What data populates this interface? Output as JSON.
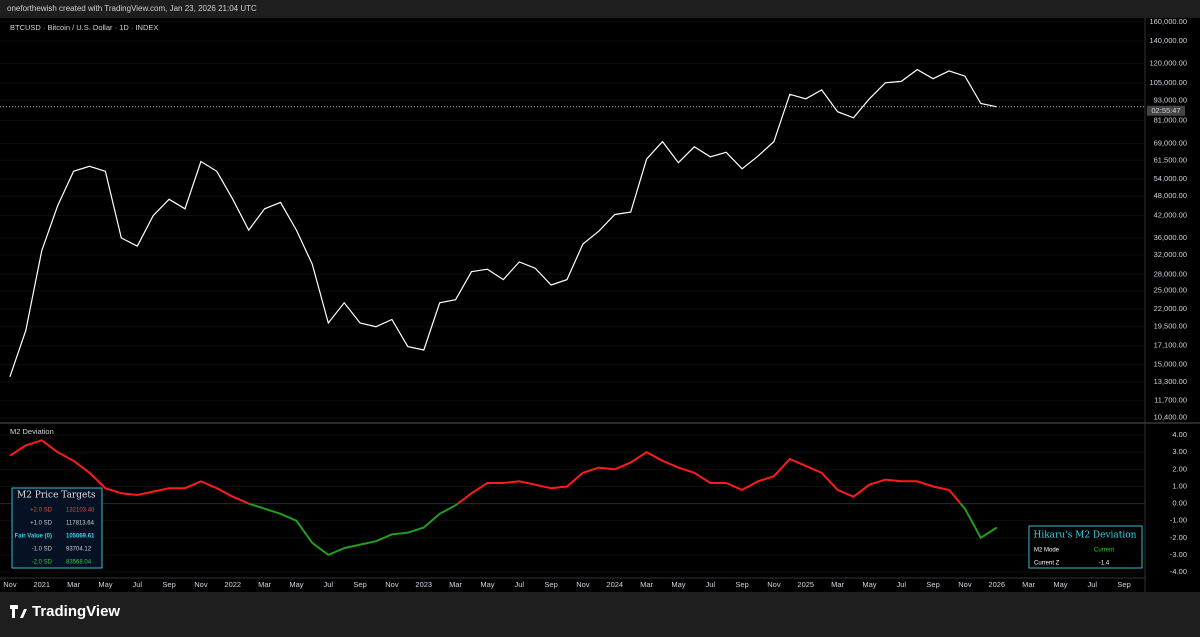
{
  "header": {
    "text": "oneforthewish created with TradingView.com, Jan 23, 2026 21:04 UTC"
  },
  "footer": {
    "logo": "TradingView"
  },
  "chart_data": [
    {
      "type": "line",
      "title": "BTCUSD · Bitcoin / U.S. Dollar · 1D · INDEX",
      "log_scale": true,
      "color": "#ffffff",
      "countdown": "02:55:47",
      "x": [
        "2020-11",
        "2020-12",
        "2021-01",
        "2021-02",
        "2021-03",
        "2021-04",
        "2021-05",
        "2021-06",
        "2021-07",
        "2021-08",
        "2021-09",
        "2021-10",
        "2021-11",
        "2021-12",
        "2022-01",
        "2022-02",
        "2022-03",
        "2022-04",
        "2022-05",
        "2022-06",
        "2022-07",
        "2022-08",
        "2022-09",
        "2022-10",
        "2022-11",
        "2022-12",
        "2023-01",
        "2023-02",
        "2023-03",
        "2023-04",
        "2023-05",
        "2023-06",
        "2023-07",
        "2023-08",
        "2023-09",
        "2023-10",
        "2023-11",
        "2023-12",
        "2024-01",
        "2024-02",
        "2024-03",
        "2024-04",
        "2024-05",
        "2024-06",
        "2024-07",
        "2024-08",
        "2024-09",
        "2024-10",
        "2024-11",
        "2024-12",
        "2025-01",
        "2025-02",
        "2025-03",
        "2025-04",
        "2025-05",
        "2025-06",
        "2025-07",
        "2025-08",
        "2025-09",
        "2025-10",
        "2025-11",
        "2025-12",
        "2026-01"
      ],
      "values": [
        13800,
        19000,
        33000,
        45000,
        57000,
        59000,
        57000,
        36000,
        34000,
        42000,
        47000,
        44000,
        61000,
        57000,
        47000,
        38000,
        44000,
        46000,
        38000,
        30000,
        20000,
        23000,
        20000,
        19500,
        20500,
        17000,
        16600,
        23000,
        23500,
        28500,
        29000,
        27000,
        30500,
        29200,
        26000,
        27000,
        34500,
        37700,
        42300,
        43000,
        62000,
        70000,
        60500,
        67500,
        63000,
        65000,
        58000,
        63300,
        70000,
        97000,
        94000,
        100000,
        86000,
        82500,
        94000,
        105000,
        106000,
        115000,
        108000,
        114000,
        110000,
        91000,
        89000
      ],
      "xlim": [
        "2020-10",
        "2026-10"
      ],
      "ylim": [
        10100,
        162000
      ],
      "yticks": [
        {
          "value": 160000,
          "label": "160,000.00"
        },
        {
          "value": 140000,
          "label": "140,000.00"
        },
        {
          "value": 120000,
          "label": "120,000.00"
        },
        {
          "value": 105000,
          "label": "105,000.00"
        },
        {
          "value": 93000,
          "label": "93,000.00"
        },
        {
          "value": 81000,
          "label": "81,000.00"
        },
        {
          "value": 69000,
          "label": "69,000.00"
        },
        {
          "value": 61500,
          "label": "61,500.00"
        },
        {
          "value": 54000,
          "label": "54,000.00"
        },
        {
          "value": 48000,
          "label": "48,000.00"
        },
        {
          "value": 42000,
          "label": "42,000.00"
        },
        {
          "value": 36000,
          "label": "36,000.00"
        },
        {
          "value": 32000,
          "label": "32,000.00"
        },
        {
          "value": 28000,
          "label": "28,000.00"
        },
        {
          "value": 25000,
          "label": "25,000.00"
        },
        {
          "value": 22000,
          "label": "22,000.00"
        },
        {
          "value": 19500,
          "label": "19,500.00"
        },
        {
          "value": 17100,
          "label": "17,100.00"
        },
        {
          "value": 15000,
          "label": "15,000.00"
        },
        {
          "value": 13300,
          "label": "13,300.00"
        },
        {
          "value": 11700,
          "label": "11,700.00"
        },
        {
          "value": 10400,
          "label": "10,400.00"
        }
      ]
    },
    {
      "type": "line",
      "title": "M2 Deviation",
      "color_above": "#ff1a1a",
      "color_below": "#1f9e1f",
      "x": [
        "2020-11",
        "2020-12",
        "2021-01",
        "2021-02",
        "2021-03",
        "2021-04",
        "2021-05",
        "2021-06",
        "2021-07",
        "2021-08",
        "2021-09",
        "2021-10",
        "2021-11",
        "2021-12",
        "2022-01",
        "2022-02",
        "2022-03",
        "2022-04",
        "2022-05",
        "2022-06",
        "2022-07",
        "2022-08",
        "2022-09",
        "2022-10",
        "2022-11",
        "2022-12",
        "2023-01",
        "2023-02",
        "2023-03",
        "2023-04",
        "2023-05",
        "2023-06",
        "2023-07",
        "2023-08",
        "2023-09",
        "2023-10",
        "2023-11",
        "2023-12",
        "2024-01",
        "2024-02",
        "2024-03",
        "2024-04",
        "2024-05",
        "2024-06",
        "2024-07",
        "2024-08",
        "2024-09",
        "2024-10",
        "2024-11",
        "2024-12",
        "2025-01",
        "2025-02",
        "2025-03",
        "2025-04",
        "2025-05",
        "2025-06",
        "2025-07",
        "2025-08",
        "2025-09",
        "2025-10",
        "2025-11",
        "2025-12",
        "2026-01"
      ],
      "values": [
        2.8,
        3.4,
        3.7,
        3.0,
        2.5,
        1.8,
        0.9,
        0.6,
        0.5,
        0.7,
        0.9,
        0.9,
        1.3,
        0.9,
        0.4,
        0.0,
        -0.3,
        -0.6,
        -1.0,
        -2.3,
        -3.0,
        -2.6,
        -2.4,
        -2.2,
        -1.8,
        -1.7,
        -1.4,
        -0.6,
        -0.1,
        0.6,
        1.2,
        1.2,
        1.3,
        1.1,
        0.9,
        1.0,
        1.8,
        2.1,
        2.0,
        2.4,
        3.0,
        2.5,
        2.1,
        1.8,
        1.2,
        1.2,
        0.8,
        1.3,
        1.6,
        2.6,
        2.2,
        1.8,
        0.8,
        0.4,
        1.1,
        1.4,
        1.3,
        1.3,
        1.0,
        0.8,
        -0.3,
        -2.0,
        -1.4
      ],
      "xlim": [
        "2020-10",
        "2026-10"
      ],
      "ylim": [
        -4.35,
        4.65
      ],
      "yticks": [
        {
          "value": 4,
          "label": "4.00"
        },
        {
          "value": 3,
          "label": "3.00"
        },
        {
          "value": 2,
          "label": "2.00"
        },
        {
          "value": 1,
          "label": "1.00"
        },
        {
          "value": 0,
          "label": "0.00"
        },
        {
          "value": -1,
          "label": "-1.00"
        },
        {
          "value": -2,
          "label": "-2.00"
        },
        {
          "value": -3,
          "label": "-3.00"
        },
        {
          "value": -4,
          "label": "-4.00"
        }
      ],
      "xticks": [
        {
          "value": "2020-11",
          "label": "Nov"
        },
        {
          "value": "2021-01",
          "label": "2021"
        },
        {
          "value": "2021-03",
          "label": "Mar"
        },
        {
          "value": "2021-05",
          "label": "May"
        },
        {
          "value": "2021-07",
          "label": "Jul"
        },
        {
          "value": "2021-09",
          "label": "Sep"
        },
        {
          "value": "2021-11",
          "label": "Nov"
        },
        {
          "value": "2022-01",
          "label": "2022"
        },
        {
          "value": "2022-03",
          "label": "Mar"
        },
        {
          "value": "2022-05",
          "label": "May"
        },
        {
          "value": "2022-07",
          "label": "Jul"
        },
        {
          "value": "2022-09",
          "label": "Sep"
        },
        {
          "value": "2022-11",
          "label": "Nov"
        },
        {
          "value": "2023-01",
          "label": "2023"
        },
        {
          "value": "2023-03",
          "label": "Mar"
        },
        {
          "value": "2023-05",
          "label": "May"
        },
        {
          "value": "2023-07",
          "label": "Jul"
        },
        {
          "value": "2023-09",
          "label": "Sep"
        },
        {
          "value": "2023-11",
          "label": "Nov"
        },
        {
          "value": "2024-01",
          "label": "2024"
        },
        {
          "value": "2024-03",
          "label": "Mar"
        },
        {
          "value": "2024-05",
          "label": "May"
        },
        {
          "value": "2024-07",
          "label": "Jul"
        },
        {
          "value": "2024-09",
          "label": "Sep"
        },
        {
          "value": "2024-11",
          "label": "Nov"
        },
        {
          "value": "2025-01",
          "label": "2025"
        },
        {
          "value": "2025-03",
          "label": "Mar"
        },
        {
          "value": "2025-05",
          "label": "May"
        },
        {
          "value": "2025-07",
          "label": "Jul"
        },
        {
          "value": "2025-09",
          "label": "Sep"
        },
        {
          "value": "2025-11",
          "label": "Nov"
        },
        {
          "value": "2026-01",
          "label": "2026"
        },
        {
          "value": "2026-03",
          "label": "Mar"
        },
        {
          "value": "2026-05",
          "label": "May"
        },
        {
          "value": "2026-07",
          "label": "Jul"
        },
        {
          "value": "2026-09",
          "label": "Sep"
        }
      ],
      "tables": {
        "targets": {
          "title": "M2 Price Targets",
          "rows": [
            [
              "+2.0 SD",
              "132103.40"
            ],
            [
              "+1.0 SD",
              "117813.64"
            ],
            [
              "Fair Value (0)",
              "105069.61"
            ],
            [
              "-1.0 SD",
              "93704.12"
            ],
            [
              "-2.0 SD",
              "83568.04"
            ]
          ]
        },
        "status": {
          "title": "Hikaru's M2 Deviation",
          "rows": [
            [
              "M2 Mode",
              "Current"
            ],
            [
              "Current Z",
              "-1.4"
            ]
          ]
        }
      }
    }
  ]
}
